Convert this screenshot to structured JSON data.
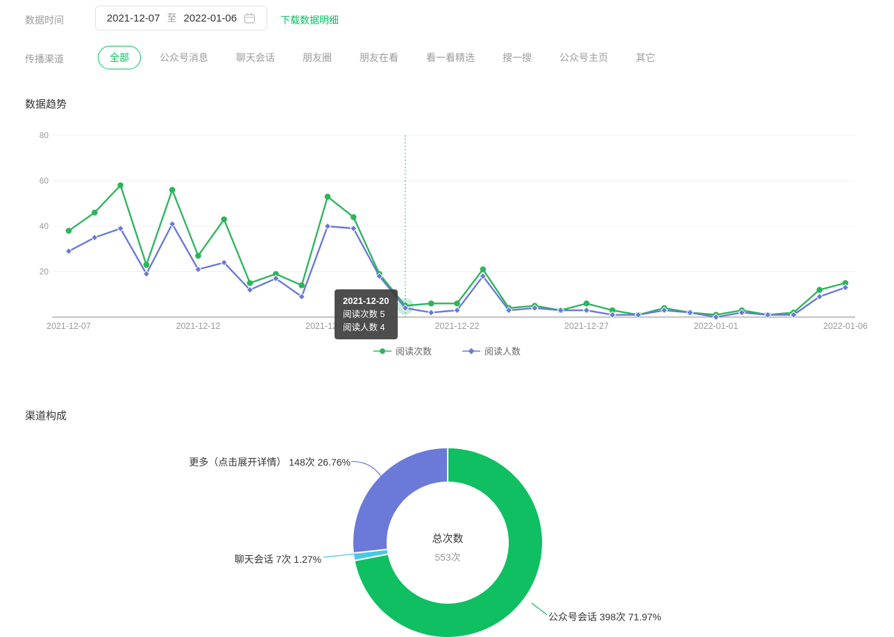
{
  "header": {
    "date_label": "数据时间",
    "date_start": "2021-12-07",
    "date_separator": "至",
    "date_end": "2022-01-06",
    "download_link": "下载数据明细"
  },
  "channels": {
    "label": "传播渠道",
    "tabs": [
      {
        "label": "全部",
        "active": true
      },
      {
        "label": "公众号消息",
        "active": false
      },
      {
        "label": "聊天会话",
        "active": false
      },
      {
        "label": "朋友圈",
        "active": false
      },
      {
        "label": "朋友在看",
        "active": false
      },
      {
        "label": "看一看精选",
        "active": false
      },
      {
        "label": "搜一搜",
        "active": false
      },
      {
        "label": "公众号主页",
        "active": false
      },
      {
        "label": "其它",
        "active": false
      }
    ]
  },
  "trend": {
    "tooltip": {
      "date": "2021-12-20",
      "rows": [
        {
          "label": "阅读次数",
          "value": "5"
        },
        {
          "label": "阅读人数",
          "value": "4"
        }
      ]
    }
  },
  "chart_data": [
    {
      "type": "line",
      "title": "数据趋势",
      "x": [
        "2021-12-07",
        "2021-12-08",
        "2021-12-09",
        "2021-12-10",
        "2021-12-11",
        "2021-12-12",
        "2021-12-13",
        "2021-12-14",
        "2021-12-15",
        "2021-12-16",
        "2021-12-17",
        "2021-12-18",
        "2021-12-19",
        "2021-12-20",
        "2021-12-21",
        "2021-12-22",
        "2021-12-23",
        "2021-12-24",
        "2021-12-25",
        "2021-12-26",
        "2021-12-27",
        "2021-12-28",
        "2021-12-29",
        "2021-12-30",
        "2021-12-31",
        "2022-01-01",
        "2022-01-02",
        "2022-01-03",
        "2022-01-04",
        "2022-01-05",
        "2022-01-06"
      ],
      "series": [
        {
          "name": "阅读次数",
          "color": "#2db55d",
          "marker": "circle",
          "values": [
            38,
            46,
            58,
            23,
            56,
            27,
            43,
            15,
            19,
            14,
            53,
            44,
            19,
            5,
            6,
            6,
            21,
            4,
            5,
            3,
            6,
            3,
            1,
            4,
            2,
            1,
            3,
            1,
            2,
            12,
            15
          ]
        },
        {
          "name": "阅读人数",
          "color": "#6979d3",
          "marker": "diamond",
          "values": [
            29,
            35,
            39,
            19,
            41,
            21,
            24,
            12,
            17,
            9,
            40,
            39,
            18,
            4,
            2,
            3,
            18,
            3,
            4,
            3,
            3,
            1,
            1,
            3,
            2,
            0,
            2,
            1,
            1,
            9,
            13
          ]
        }
      ],
      "ylim": [
        0,
        80
      ],
      "yticks": [
        20,
        40,
        60,
        80
      ],
      "xtick_labels": [
        "2021-12-07",
        "2021-12-12",
        "2021-12-17",
        "2021-12-22",
        "2021-12-27",
        "2022-01-01",
        "2022-01-06"
      ],
      "grid": true,
      "legend_position": "bottom",
      "hover_index": 13
    },
    {
      "type": "pie",
      "title": "渠道构成",
      "donut": true,
      "center_title": "总次数",
      "center_value": "553次",
      "total": 553,
      "slices": [
        {
          "name": "公众号会话",
          "value": 398,
          "unit": "次",
          "percent": "71.97%",
          "color": "#0fbf61"
        },
        {
          "name": "聊天会话",
          "value": 7,
          "unit": "次",
          "percent": "1.27%",
          "color": "#49c9e3"
        },
        {
          "name": "更多（点击展开详情）",
          "value": 148,
          "unit": "次",
          "percent": "26.76%",
          "color": "#6b7ad8"
        }
      ]
    }
  ],
  "colors": {
    "accent": "#07c160",
    "text_dark": "#333333",
    "text_gray": "#999999",
    "axis_line": "#c9c9c9",
    "grid_line": "#f0f0f0",
    "halo": "rgba(64,186,141,0.28)"
  }
}
